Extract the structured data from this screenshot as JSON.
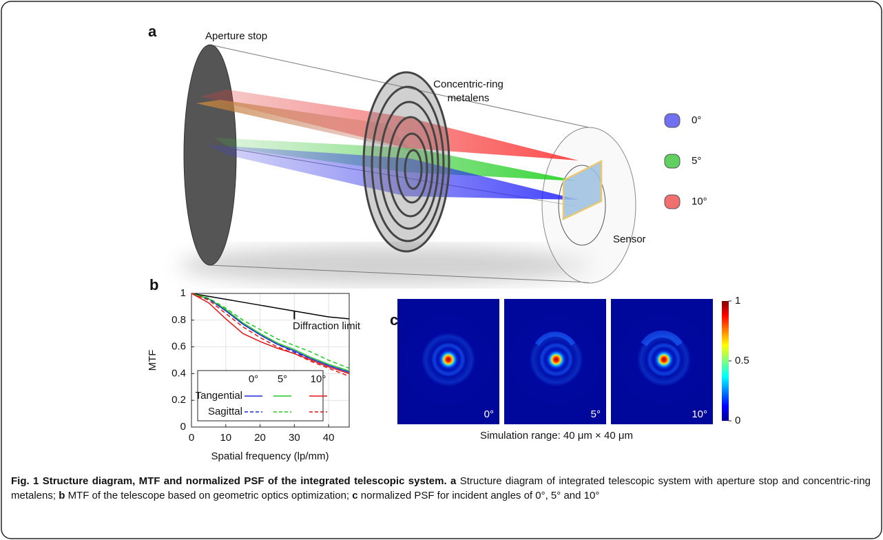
{
  "panel_a": {
    "label": "a",
    "aperture_label": "Aperture stop",
    "metalens_label": [
      "Concentric-ring",
      "metalens"
    ],
    "sensor_label": "Sensor",
    "legend": [
      "0°",
      "5°",
      "10°"
    ]
  },
  "chart_data": {
    "type": "line",
    "label": "b",
    "xlabel": "Spatial frequency (lp/mm)",
    "ylabel": "MTF",
    "x": [
      0,
      5,
      10,
      15,
      20,
      25,
      30,
      35,
      40,
      46
    ],
    "xlim": [
      0,
      46
    ],
    "ylim": [
      0,
      1
    ],
    "xticks": [
      0,
      10,
      20,
      30,
      40
    ],
    "yticks": [
      0,
      0.2,
      0.4,
      0.6,
      0.8,
      1
    ],
    "grid": true,
    "reference": {
      "name": "Diffraction limit",
      "color": "#000000",
      "values": [
        1,
        0.978,
        0.956,
        0.934,
        0.912,
        0.89,
        0.868,
        0.846,
        0.824,
        0.81
      ]
    },
    "legend_columns": [
      "0°",
      "5°",
      "10°"
    ],
    "series": [
      {
        "name": "Tangential",
        "dashed": false,
        "colors": [
          "#1a2ad6",
          "#22c822",
          "#e01414"
        ],
        "values": [
          [
            1,
            0.96,
            0.87,
            0.77,
            0.69,
            0.62,
            0.57,
            0.51,
            0.46,
            0.41
          ],
          [
            1,
            0.96,
            0.88,
            0.78,
            0.7,
            0.63,
            0.58,
            0.52,
            0.47,
            0.42
          ],
          [
            1,
            0.93,
            0.81,
            0.7,
            0.64,
            0.59,
            0.55,
            0.5,
            0.45,
            0.4
          ]
        ]
      },
      {
        "name": "Sagittal",
        "dashed": true,
        "colors": [
          "#1a2ad6",
          "#22c822",
          "#e01414"
        ],
        "values": [
          [
            1,
            0.96,
            0.87,
            0.77,
            0.69,
            0.62,
            0.56,
            0.51,
            0.46,
            0.41
          ],
          [
            1,
            0.965,
            0.89,
            0.8,
            0.73,
            0.66,
            0.61,
            0.56,
            0.5,
            0.44
          ],
          [
            1,
            0.95,
            0.85,
            0.75,
            0.67,
            0.6,
            0.55,
            0.49,
            0.44,
            0.38
          ]
        ]
      }
    ]
  },
  "panel_c": {
    "label": "c",
    "angles": [
      "0°",
      "5°",
      "10°"
    ],
    "range_label": "Simulation range: 40 μm × 40 μm",
    "colorbar": {
      "lim": [
        0,
        1
      ],
      "ticks": [
        0,
        0.5,
        1
      ]
    }
  },
  "caption": {
    "title": "Fig. 1 Structure diagram, MTF and normalized PSF of the integrated telescopic system.",
    "parts": [
      {
        "letter": "a",
        "text": "Structure diagram of integrated telescopic system with aperture stop and concentric-ring metalens;"
      },
      {
        "letter": "b",
        "text": "MTF of the telescope based on geometric optics optimization;"
      },
      {
        "letter": "c",
        "text": "normalized PSF for incident angles of 0°, 5° and 10°"
      }
    ]
  }
}
